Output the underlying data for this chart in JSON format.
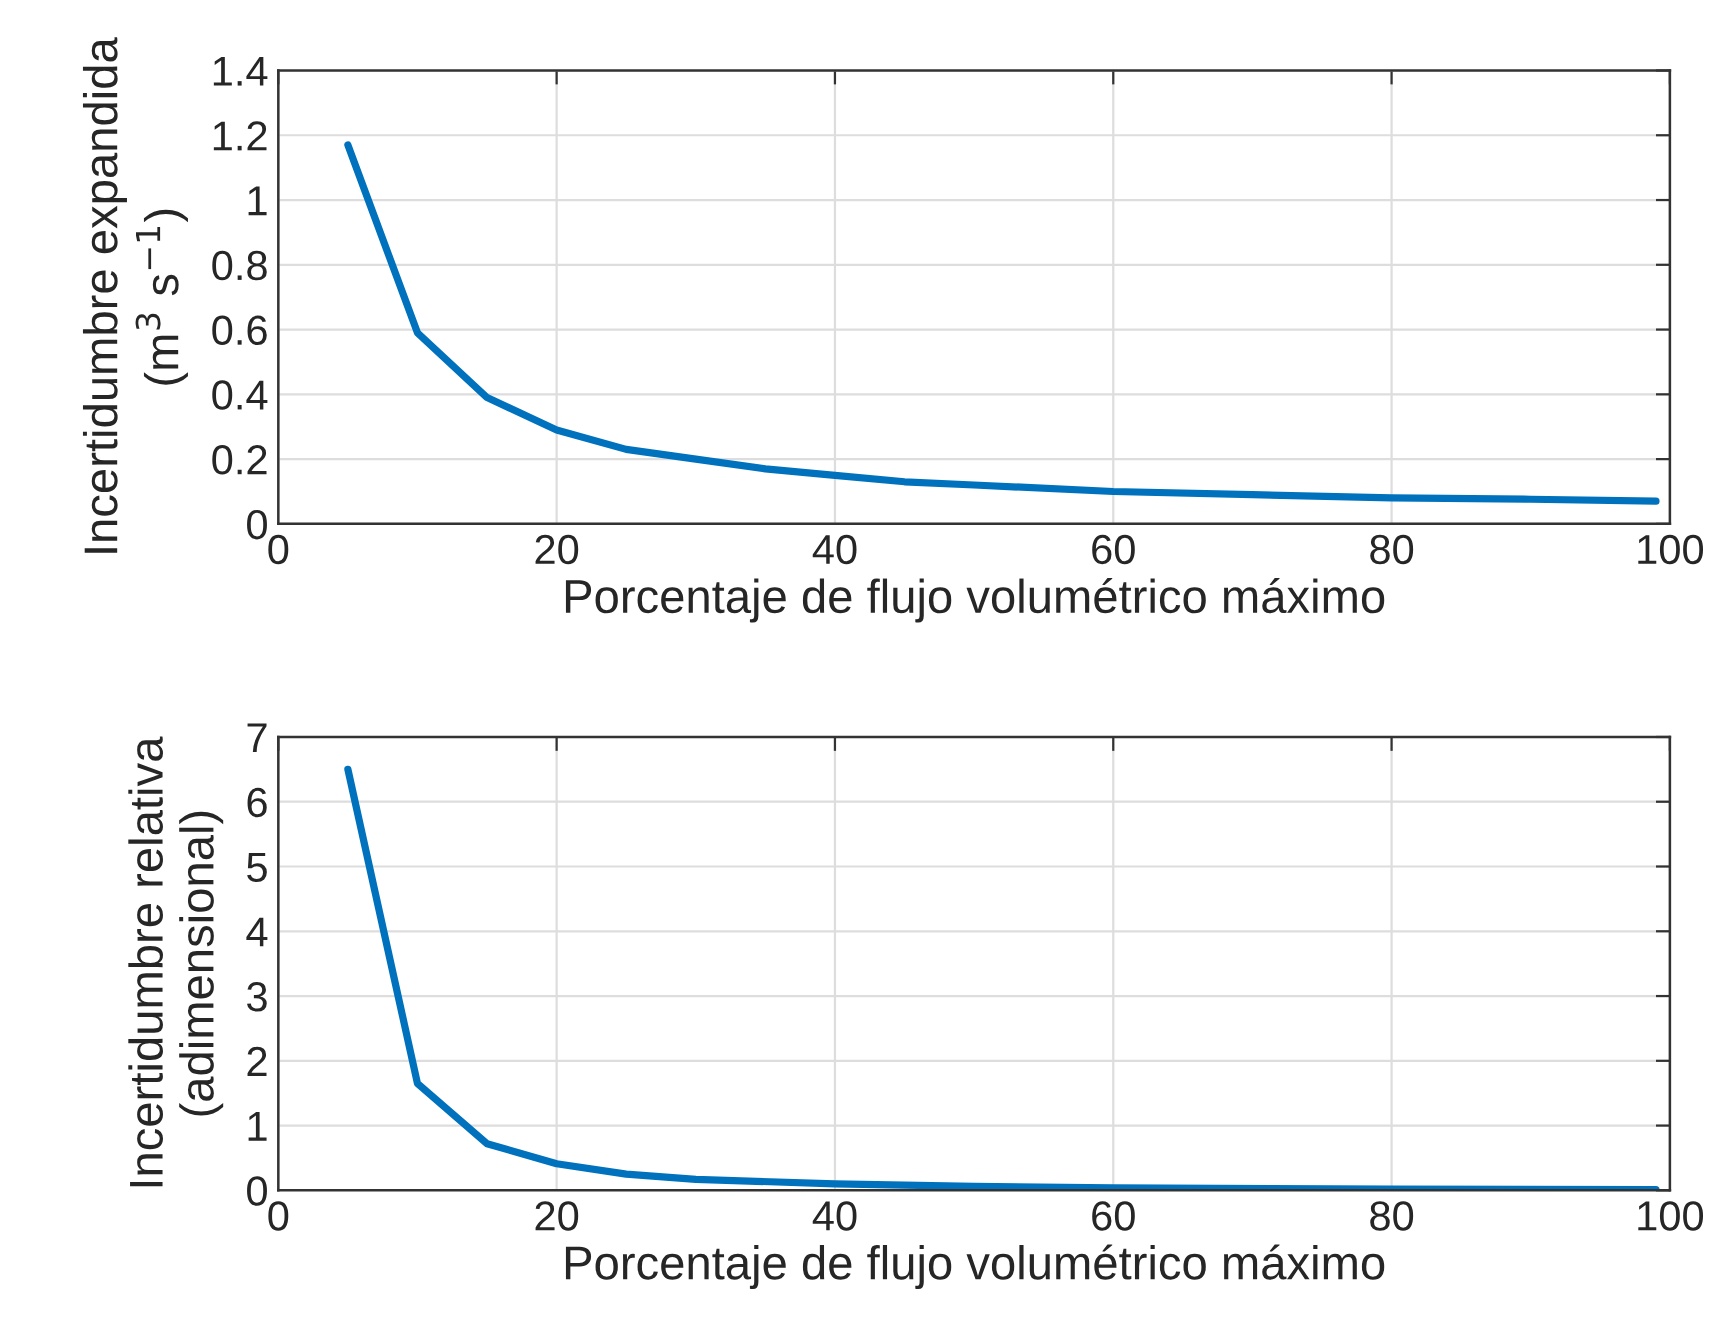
{
  "chart_data": [
    {
      "type": "line",
      "xlabel": "Porcentaje de flujo volumétrico máximo",
      "ylabel": "Incertidumbre expandida\n(m$^{3}$ s$^{−1}$)",
      "x": [
        5,
        10,
        15,
        20,
        25,
        30,
        35,
        40,
        45,
        50,
        60,
        70,
        80,
        90,
        99
      ],
      "series": [
        {
          "color": "#0072bd",
          "values": [
            1.17,
            0.59,
            0.39,
            0.29,
            0.23,
            0.2,
            0.17,
            0.15,
            0.13,
            0.12,
            0.1,
            0.09,
            0.08,
            0.076,
            0.07
          ]
        }
      ],
      "xlim": [
        0,
        100
      ],
      "xticks": [
        0,
        20,
        40,
        60,
        80,
        100
      ],
      "ylim": [
        0,
        1.4
      ],
      "yticks": [
        0,
        0.2,
        0.4,
        0.6,
        0.8,
        1,
        1.2,
        1.4
      ],
      "grid": true,
      "marker": "none",
      "line_style": "solid"
    },
    {
      "type": "line",
      "xlabel": "Porcentaje de flujo volumétrico máximo",
      "ylabel": "Incertidumbre relativa\n(adimensional)",
      "x": [
        5,
        10,
        15,
        20,
        25,
        30,
        40,
        50,
        60,
        80,
        99
      ],
      "series": [
        {
          "color": "#0072bd",
          "values": [
            6.5,
            1.65,
            0.72,
            0.41,
            0.25,
            0.17,
            0.1,
            0.06,
            0.04,
            0.02,
            0.01
          ]
        }
      ],
      "xlim": [
        0,
        100
      ],
      "xticks": [
        0,
        20,
        40,
        60,
        80,
        100
      ],
      "ylim": [
        0,
        7
      ],
      "yticks": [
        0,
        1,
        2,
        3,
        4,
        5,
        6,
        7
      ],
      "grid": true,
      "marker": "none",
      "line_style": "solid"
    }
  ]
}
